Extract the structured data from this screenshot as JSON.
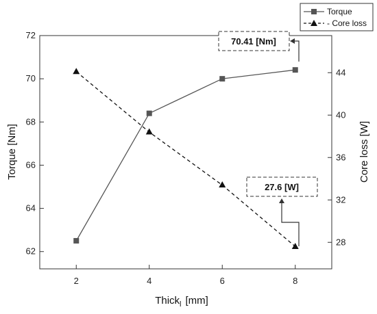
{
  "chart_data": {
    "type": "line",
    "x": [
      2,
      4,
      6,
      8
    ],
    "xlabel": "Thick",
    "xlabel_sub": "l",
    "xlabel_unit": "[mm]",
    "xlim": [
      1,
      9
    ],
    "xticks": [
      2,
      4,
      6,
      8
    ],
    "y_left": {
      "label": "Torque [Nm]",
      "lim": [
        61.2,
        72
      ],
      "ticks": [
        62,
        64,
        66,
        68,
        70,
        72
      ]
    },
    "y_right": {
      "label": "Core loss [W]",
      "lim": [
        25.5,
        47.5
      ],
      "ticks": [
        28,
        32,
        36,
        40,
        44
      ]
    },
    "series": [
      {
        "name": "Torque",
        "axis": "left",
        "values": [
          62.5,
          68.4,
          70.0,
          70.41
        ],
        "marker": "square",
        "line": "solid",
        "color": "#555555"
      },
      {
        "name": "Core loss",
        "axis": "right",
        "values": [
          44.1,
          38.4,
          33.4,
          27.6
        ],
        "marker": "triangle",
        "line": "dashed",
        "color": "#111111"
      }
    ],
    "legend": {
      "placement": "top-right",
      "entries": [
        "Torque",
        "- Core loss"
      ]
    },
    "annotations": [
      {
        "text": "70.41  [Nm]",
        "target_series": "Torque",
        "target_x": 8
      },
      {
        "text": "27.6  [W]",
        "target_series": "Core loss",
        "target_x": 8
      }
    ],
    "grid": false
  }
}
